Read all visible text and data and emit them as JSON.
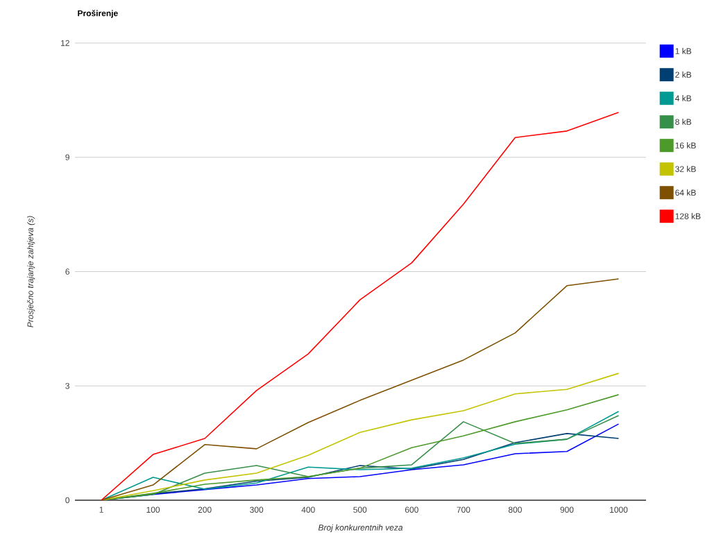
{
  "chart_data": {
    "type": "line",
    "title": "Proširenje",
    "xlabel": "Broj konkurentnih veza",
    "ylabel": "Prosječno trajanje zahtjeva (s)",
    "categories": [
      "1",
      "100",
      "200",
      "300",
      "400",
      "500",
      "600",
      "700",
      "800",
      "900",
      "1000"
    ],
    "ylim": [
      0,
      12
    ],
    "yticks": [
      0,
      3,
      6,
      9,
      12
    ],
    "grid": "y",
    "legend": "right",
    "line_style": "solid",
    "series": [
      {
        "name": "1 kB",
        "color": "#0000ff",
        "values": [
          0,
          0.15,
          0.28,
          0.4,
          0.57,
          0.62,
          0.8,
          0.93,
          1.22,
          1.28,
          2.0
        ]
      },
      {
        "name": "2 kB",
        "color": "#003f72",
        "values": [
          0,
          0.17,
          0.3,
          0.5,
          0.6,
          0.91,
          0.82,
          1.07,
          1.51,
          1.75,
          1.62
        ]
      },
      {
        "name": "4 kB",
        "color": "#009a92",
        "values": [
          0,
          0.6,
          0.29,
          0.45,
          0.87,
          0.8,
          0.84,
          1.11,
          1.47,
          1.6,
          2.33
        ]
      },
      {
        "name": "8 kB",
        "color": "#379049",
        "values": [
          0,
          0.15,
          0.71,
          0.91,
          0.62,
          0.84,
          0.93,
          2.06,
          1.49,
          1.6,
          2.22
        ]
      },
      {
        "name": "16 kB",
        "color": "#4c9a2a",
        "values": [
          0,
          0.18,
          0.42,
          0.53,
          0.62,
          0.84,
          1.38,
          1.69,
          2.06,
          2.37,
          2.77
        ]
      },
      {
        "name": "32 kB",
        "color": "#c3c300",
        "values": [
          0,
          0.25,
          0.53,
          0.71,
          1.18,
          1.78,
          2.11,
          2.35,
          2.79,
          2.91,
          3.33
        ]
      },
      {
        "name": "64 kB",
        "color": "#7f5000",
        "values": [
          0,
          0.4,
          1.46,
          1.35,
          2.04,
          2.62,
          3.15,
          3.68,
          4.39,
          5.63,
          5.81
        ]
      },
      {
        "name": "128 kB",
        "color": "#ff0000",
        "values": [
          0,
          1.2,
          1.62,
          2.88,
          3.84,
          5.26,
          6.23,
          7.77,
          9.52,
          9.69,
          10.18
        ]
      }
    ]
  }
}
